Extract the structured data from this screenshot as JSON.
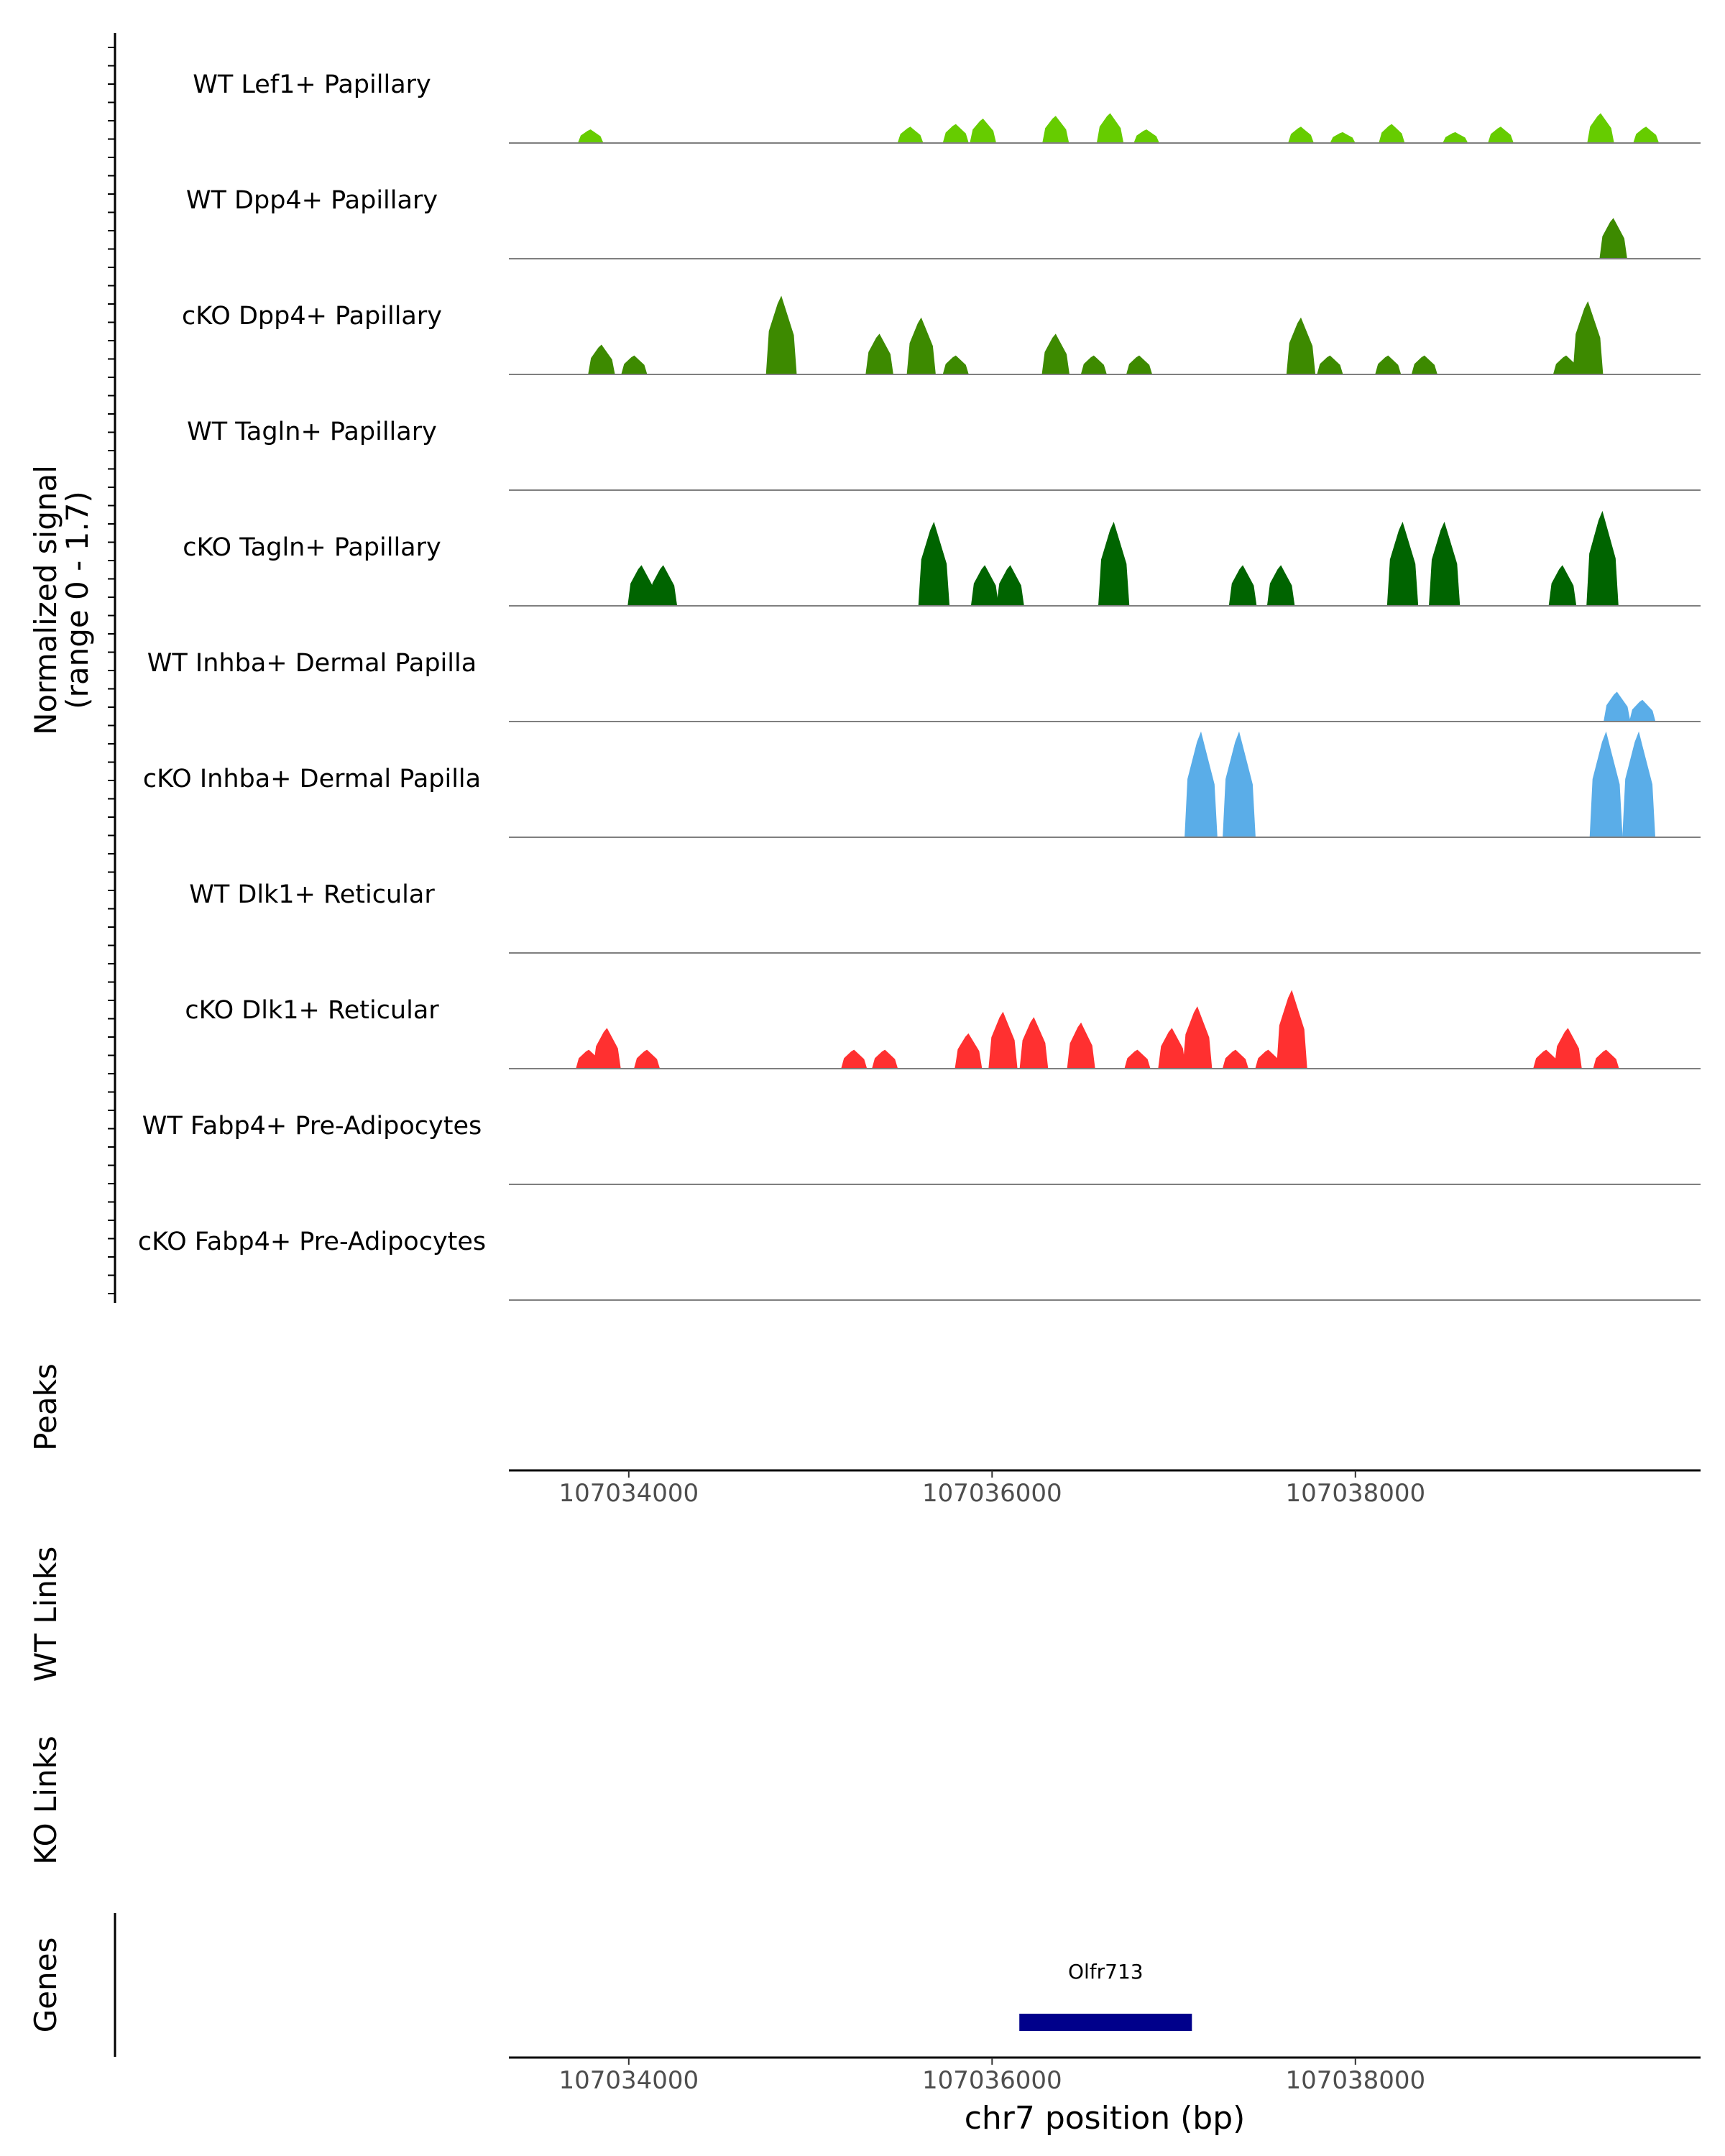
{
  "chart_data": {
    "type": "area",
    "chromosome": "chr7",
    "xlim": [
      107033340,
      107039900
    ],
    "signal_axis_label": "Normalized signal",
    "signal_axis_range": "(range 0 - 1.7)",
    "ymax": 1.7,
    "series": [
      {
        "name": "WT Lef1+ Papillary",
        "color": "#66cc00",
        "peaks": [
          [
            107033790,
            0.25
          ],
          [
            107035550,
            0.3
          ],
          [
            107035800,
            0.35
          ],
          [
            107035950,
            0.45
          ],
          [
            107036350,
            0.5
          ],
          [
            107036650,
            0.55
          ],
          [
            107036850,
            0.25
          ],
          [
            107037700,
            0.3
          ],
          [
            107037930,
            0.2
          ],
          [
            107038200,
            0.35
          ],
          [
            107038550,
            0.2
          ],
          [
            107038800,
            0.3
          ],
          [
            107039350,
            0.55
          ],
          [
            107039600,
            0.3
          ]
        ]
      },
      {
        "name": "WT Dpp4+ Papillary",
        "color": "#3d8a00",
        "peaks": [
          [
            107039420,
            0.75
          ]
        ]
      },
      {
        "name": "cKO Dpp4+ Papillary",
        "color": "#3d8a00",
        "peaks": [
          [
            107033850,
            0.55
          ],
          [
            107034030,
            0.35
          ],
          [
            107034840,
            1.45
          ],
          [
            107035380,
            0.75
          ],
          [
            107035610,
            1.05
          ],
          [
            107035800,
            0.35
          ],
          [
            107036350,
            0.75
          ],
          [
            107036560,
            0.35
          ],
          [
            107036810,
            0.35
          ],
          [
            107037700,
            1.05
          ],
          [
            107037860,
            0.35
          ],
          [
            107038180,
            0.35
          ],
          [
            107038380,
            0.35
          ],
          [
            107039280,
            1.35
          ],
          [
            107039160,
            0.35
          ]
        ]
      },
      {
        "name": "WT Tagln+ Papillary",
        "color": "#006400",
        "peaks": []
      },
      {
        "name": "cKO Tagln+ Papillary",
        "color": "#006400",
        "peaks": [
          [
            107034070,
            0.75
          ],
          [
            107034190,
            0.75
          ],
          [
            107035680,
            1.55
          ],
          [
            107035960,
            0.75
          ],
          [
            107036100,
            0.75
          ],
          [
            107036670,
            1.55
          ],
          [
            107037380,
            0.75
          ],
          [
            107037590,
            0.75
          ],
          [
            107038260,
            1.55
          ],
          [
            107038490,
            1.55
          ],
          [
            107039140,
            0.75
          ],
          [
            107039360,
            1.75
          ]
        ]
      },
      {
        "name": "WT Inhba+ Dermal Papilla",
        "color": "#5aade8",
        "peaks": [
          [
            107039440,
            0.55
          ],
          [
            107039580,
            0.4
          ]
        ]
      },
      {
        "name": "cKO Inhba+ Dermal Papilla",
        "color": "#5aade8",
        "peaks": [
          [
            107037150,
            1.95
          ],
          [
            107037360,
            1.95
          ],
          [
            107039380,
            1.95
          ],
          [
            107039560,
            1.95
          ]
        ]
      },
      {
        "name": "WT Dlk1+ Reticular",
        "color": "#ff3030",
        "peaks": []
      },
      {
        "name": "cKO Dlk1+ Reticular",
        "color": "#ff3030",
        "peaks": [
          [
            107033780,
            0.35
          ],
          [
            107033880,
            0.75
          ],
          [
            107034100,
            0.35
          ],
          [
            107035240,
            0.35
          ],
          [
            107035410,
            0.35
          ],
          [
            107035870,
            0.65
          ],
          [
            107036060,
            1.05
          ],
          [
            107036230,
            0.95
          ],
          [
            107036490,
            0.85
          ],
          [
            107036800,
            0.35
          ],
          [
            107036990,
            0.75
          ],
          [
            107037130,
            1.15
          ],
          [
            107037340,
            0.35
          ],
          [
            107037520,
            0.35
          ],
          [
            107037650,
            1.45
          ],
          [
            107039050,
            0.35
          ],
          [
            107039170,
            0.75
          ],
          [
            107039380,
            0.35
          ]
        ]
      },
      {
        "name": "WT Fabp4+ Pre-Adipocytes",
        "color": "#ff3030",
        "peaks": []
      },
      {
        "name": "cKO Fabp4+ Pre-Adipocytes",
        "color": "#ff3030",
        "peaks": []
      }
    ],
    "peaks_track_label": "Peaks",
    "wt_links_label": "WT Links",
    "ko_links_label": "KO Links",
    "genes_track_label": "Genes",
    "x_ticks": [
      107034000,
      107036000,
      107038000
    ],
    "tick_labels": [
      "107034000",
      "107036000",
      "107038000"
    ],
    "xlabel": "chr7 position (bp)",
    "genes": [
      {
        "name": "Olfr713",
        "start": 107036150,
        "end": 107037100,
        "strand": "-",
        "color": "#00008b"
      }
    ]
  }
}
